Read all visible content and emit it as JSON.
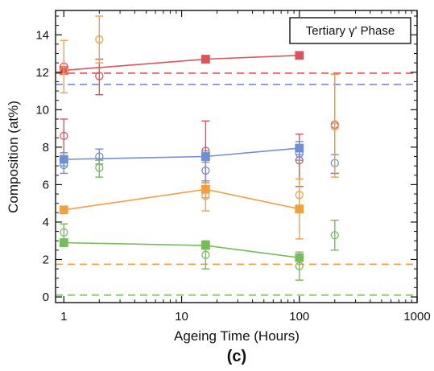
{
  "chart_data": {
    "type": "scatter",
    "title": "",
    "annotation": "Tertiary γ' Phase",
    "panel_label": "(c)",
    "xlabel": "Ageing Time (Hours)",
    "ylabel": "Composition (at%)",
    "xscale": "log",
    "xlim": [
      0.85,
      1000
    ],
    "ylim": [
      -0.3,
      15.3
    ],
    "x_ticks": [
      1,
      10,
      100,
      1000
    ],
    "x_tick_labels": [
      "1",
      "10",
      "100",
      "1000"
    ],
    "y_ticks": [
      0,
      2,
      4,
      6,
      8,
      10,
      12,
      14
    ],
    "y_tick_labels": [
      "0",
      "2",
      "4",
      "6",
      "8",
      "10",
      "12",
      "14"
    ],
    "grid": false,
    "legend": "none",
    "series": [
      {
        "color": "#d9545c",
        "marker_filled": [
          {
            "x": 1,
            "y": 12.1
          },
          {
            "x": 16,
            "y": 12.7
          },
          {
            "x": 100,
            "y": 12.9
          }
        ],
        "marker_open": [
          {
            "x": 1,
            "y": 12.3
          },
          {
            "x": 2,
            "y": 11.8,
            "err": [
              10.8,
              12.7
            ]
          },
          {
            "x": 1,
            "y": 8.6,
            "err": [
              7.3,
              9.5
            ]
          },
          {
            "x": 16,
            "y": 7.8,
            "err": [
              6.1,
              9.4
            ]
          },
          {
            "x": 100,
            "y": 7.3,
            "err": [
              5.9,
              8.7
            ]
          },
          {
            "x": 200,
            "y": 9.2,
            "err": [
              6.6,
              11.9
            ]
          }
        ],
        "reference": 11.95
      },
      {
        "color": "#6f8fd3",
        "marker_filled": [
          {
            "x": 1,
            "y": 7.35,
            "err": [
              7.0,
              7.7
            ]
          },
          {
            "x": 16,
            "y": 7.5,
            "err": [
              7.2,
              7.8
            ]
          },
          {
            "x": 100,
            "y": 7.95,
            "err": [
              7.6,
              8.3
            ]
          }
        ],
        "marker_open": [
          {
            "x": 1,
            "y": 7.05,
            "err": [
              6.6,
              7.5
            ]
          },
          {
            "x": 2,
            "y": 7.5,
            "err": [
              7.1,
              7.9
            ]
          },
          {
            "x": 16,
            "y": 6.75,
            "err": [
              6.2,
              7.3
            ]
          },
          {
            "x": 100,
            "y": 7.65,
            "err": [
              7.3,
              8.0
            ]
          },
          {
            "x": 200,
            "y": 7.15,
            "err": [
              6.6,
              7.6
            ]
          }
        ],
        "reference": 11.35
      },
      {
        "color": "#f0a043",
        "marker_filled": [
          {
            "x": 1,
            "y": 4.65
          },
          {
            "x": 16,
            "y": 5.75,
            "err": [
              5.3,
              6.1
            ]
          },
          {
            "x": 100,
            "y": 4.7,
            "err": [
              3.1,
              6.3
            ]
          }
        ],
        "marker_open": [
          {
            "x": 1,
            "y": 12.1,
            "err": [
              10.9,
              13.7
            ]
          },
          {
            "x": 2,
            "y": 13.75,
            "err": [
              12.5,
              15.0
            ]
          },
          {
            "x": 16,
            "y": 5.4,
            "err": [
              4.6,
              6.1
            ]
          },
          {
            "x": 100,
            "y": 5.45
          },
          {
            "x": 200,
            "y": 9.1,
            "err": [
              6.4,
              11.9
            ]
          }
        ],
        "reference": 1.75
      },
      {
        "color": "#76bc5d",
        "marker_filled": [
          {
            "x": 1,
            "y": 2.9
          },
          {
            "x": 16,
            "y": 2.75
          },
          {
            "x": 100,
            "y": 2.1
          }
        ],
        "marker_open": [
          {
            "x": 1,
            "y": 3.45,
            "err": [
              3.0,
              3.9
            ]
          },
          {
            "x": 2,
            "y": 6.9,
            "err": [
              6.4,
              7.3
            ]
          },
          {
            "x": 16,
            "y": 2.25,
            "err": [
              1.5,
              3.0
            ]
          },
          {
            "x": 100,
            "y": 1.65,
            "err": [
              0.9,
              2.4
            ]
          },
          {
            "x": 200,
            "y": 3.3,
            "err": [
              2.5,
              4.1
            ]
          }
        ],
        "reference": 0.1
      }
    ]
  }
}
